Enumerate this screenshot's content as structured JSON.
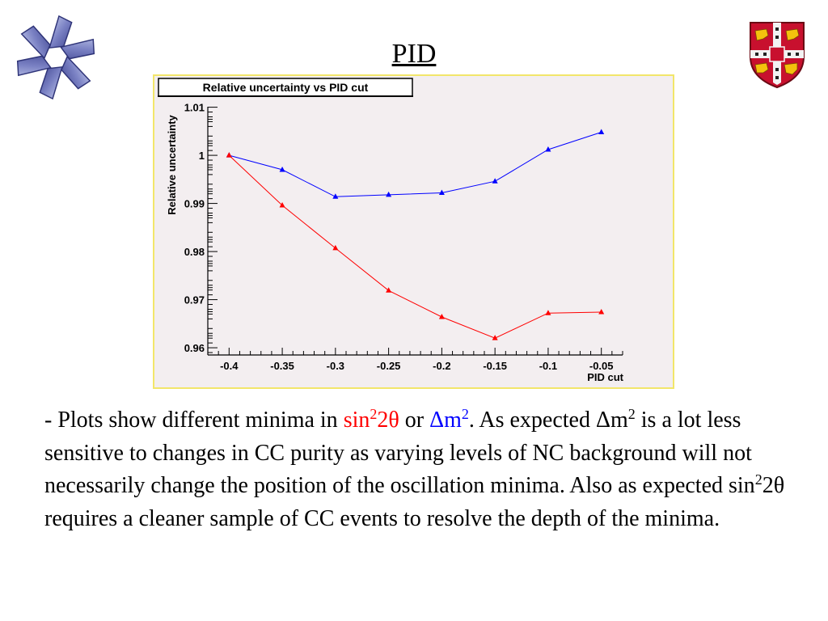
{
  "slide": {
    "title": "PID",
    "text": {
      "p1": "- Plots show different minima in ",
      "sin_a": "sin",
      "sup_a": "2",
      "theta_a": "2θ",
      "or": " or ",
      "dm_a": "Δm",
      "sup_b": "2",
      "p2": ". As expected Δm",
      "sup_c": "2",
      "p3": " is a lot less sensitive to changes in CC purity as varying levels of NC background will not necessarily change the position of the oscillation minima. Also as expected sin",
      "sup_d": "2",
      "p4": "2θ requires a cleaner sample of CC events to resolve the depth of the minima."
    }
  },
  "icons": {
    "left": "star-of-life-logo-icon",
    "right": "university-coat-of-arms-icon"
  },
  "colors": {
    "series_blue": "#0000ff",
    "series_red": "#ff0000",
    "frame_border": "#f2e66a",
    "plot_background": "#f3eef0"
  },
  "chart_data": {
    "type": "line",
    "title": "Relative uncertainty vs PID cut",
    "xlabel": "PID cut",
    "ylabel": "Relative uncertainty",
    "xlim": [
      -0.42,
      -0.03
    ],
    "ylim": [
      0.9585,
      1.0101
    ],
    "grid": false,
    "x": [
      -0.4,
      -0.35,
      -0.3,
      -0.25,
      -0.2,
      -0.15,
      -0.1,
      -0.05
    ],
    "xticks": [
      "-0.4",
      "-0.35",
      "-0.3",
      "-0.25",
      "-0.2",
      "-0.15",
      "-0.1",
      "-0.05"
    ],
    "yticks": [
      "0.96",
      "0.97",
      "0.98",
      "0.99",
      "1",
      "1.01"
    ],
    "series": [
      {
        "color": "blue",
        "marker": "triangle",
        "values": [
          1.0,
          0.997,
          0.9914,
          0.9918,
          0.9922,
          0.9946,
          1.0012,
          1.0048
        ]
      },
      {
        "color": "red",
        "marker": "triangle",
        "values": [
          1.0,
          0.9896,
          0.9807,
          0.9719,
          0.9664,
          0.962,
          0.9672,
          0.9674
        ]
      }
    ]
  }
}
